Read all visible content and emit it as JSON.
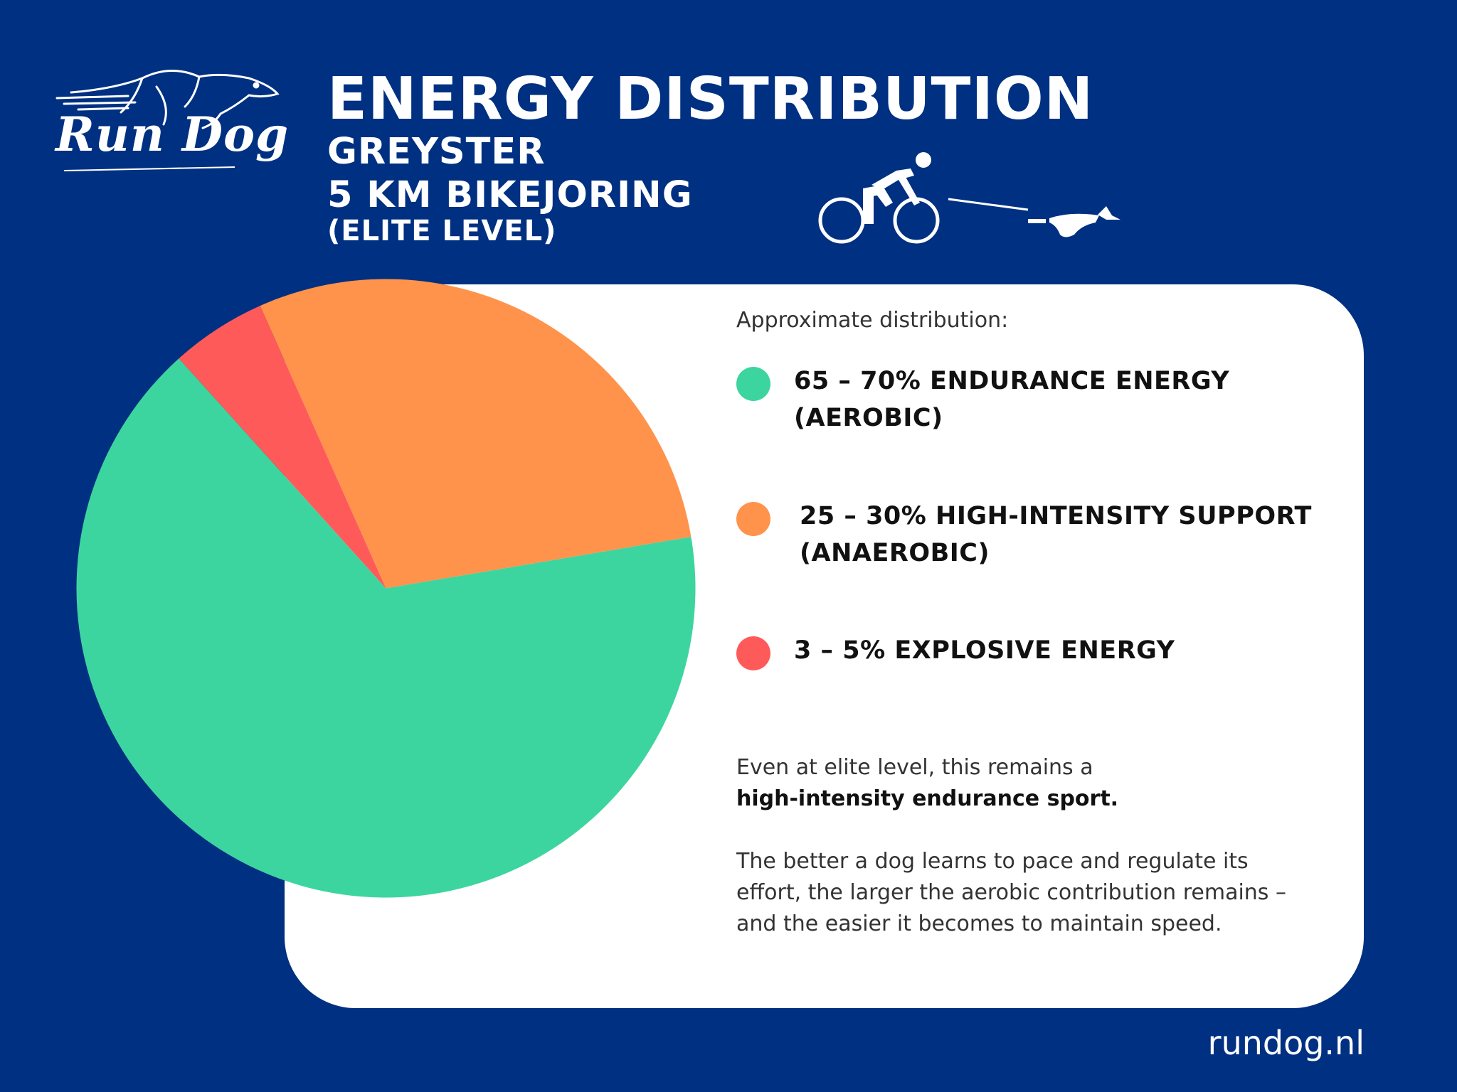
{
  "brand": {
    "logo_text": "Run Dog",
    "website": "rundog.nl"
  },
  "header": {
    "title": "ENERGY DISTRIBUTION",
    "line1": "GREYSTER",
    "line2": "5 KM BIKEJORING",
    "line3": "(ELITE LEVEL)"
  },
  "icons": {
    "logo": "running-dog-logo",
    "bikejoring": "cyclist-with-dog-icon"
  },
  "colors": {
    "background": "#003082",
    "endurance": "#3DD59F",
    "high_intensity": "#FF934B",
    "explosive": "#FF5A5A"
  },
  "chart_data": {
    "type": "pie",
    "title": "",
    "slices": [
      {
        "label": "Endurance energy (aerobic)",
        "value": 66,
        "color": "#3DD59F"
      },
      {
        "label": "High-intensity support (anaerobic)",
        "value": 29,
        "color": "#FF934B"
      },
      {
        "label": "Explosive energy",
        "value": 5,
        "color": "#FF5A5A"
      }
    ],
    "start_angle_deg": 132,
    "direction": "counterclockwise"
  },
  "legend": {
    "intro": "Approximate distribution:",
    "items": [
      {
        "line1": "65 – 70% ENDURANCE ENERGY",
        "line2": "(AEROBIC)"
      },
      {
        "line1": "25 – 30% HIGH-INTENSITY SUPPORT",
        "line2": "(ANAEROBIC)"
      },
      {
        "line1": "3 – 5% EXPLOSIVE ENERGY",
        "line2": ""
      }
    ]
  },
  "notes": {
    "p1_line1": "Even at elite level, this remains a",
    "p1_line2": "high-intensity endurance sport.",
    "p2_line1": "The better a dog learns to pace and regulate its",
    "p2_line2": "effort, the larger the aerobic contribution remains –",
    "p2_line3": "and the easier it becomes to maintain speed."
  }
}
